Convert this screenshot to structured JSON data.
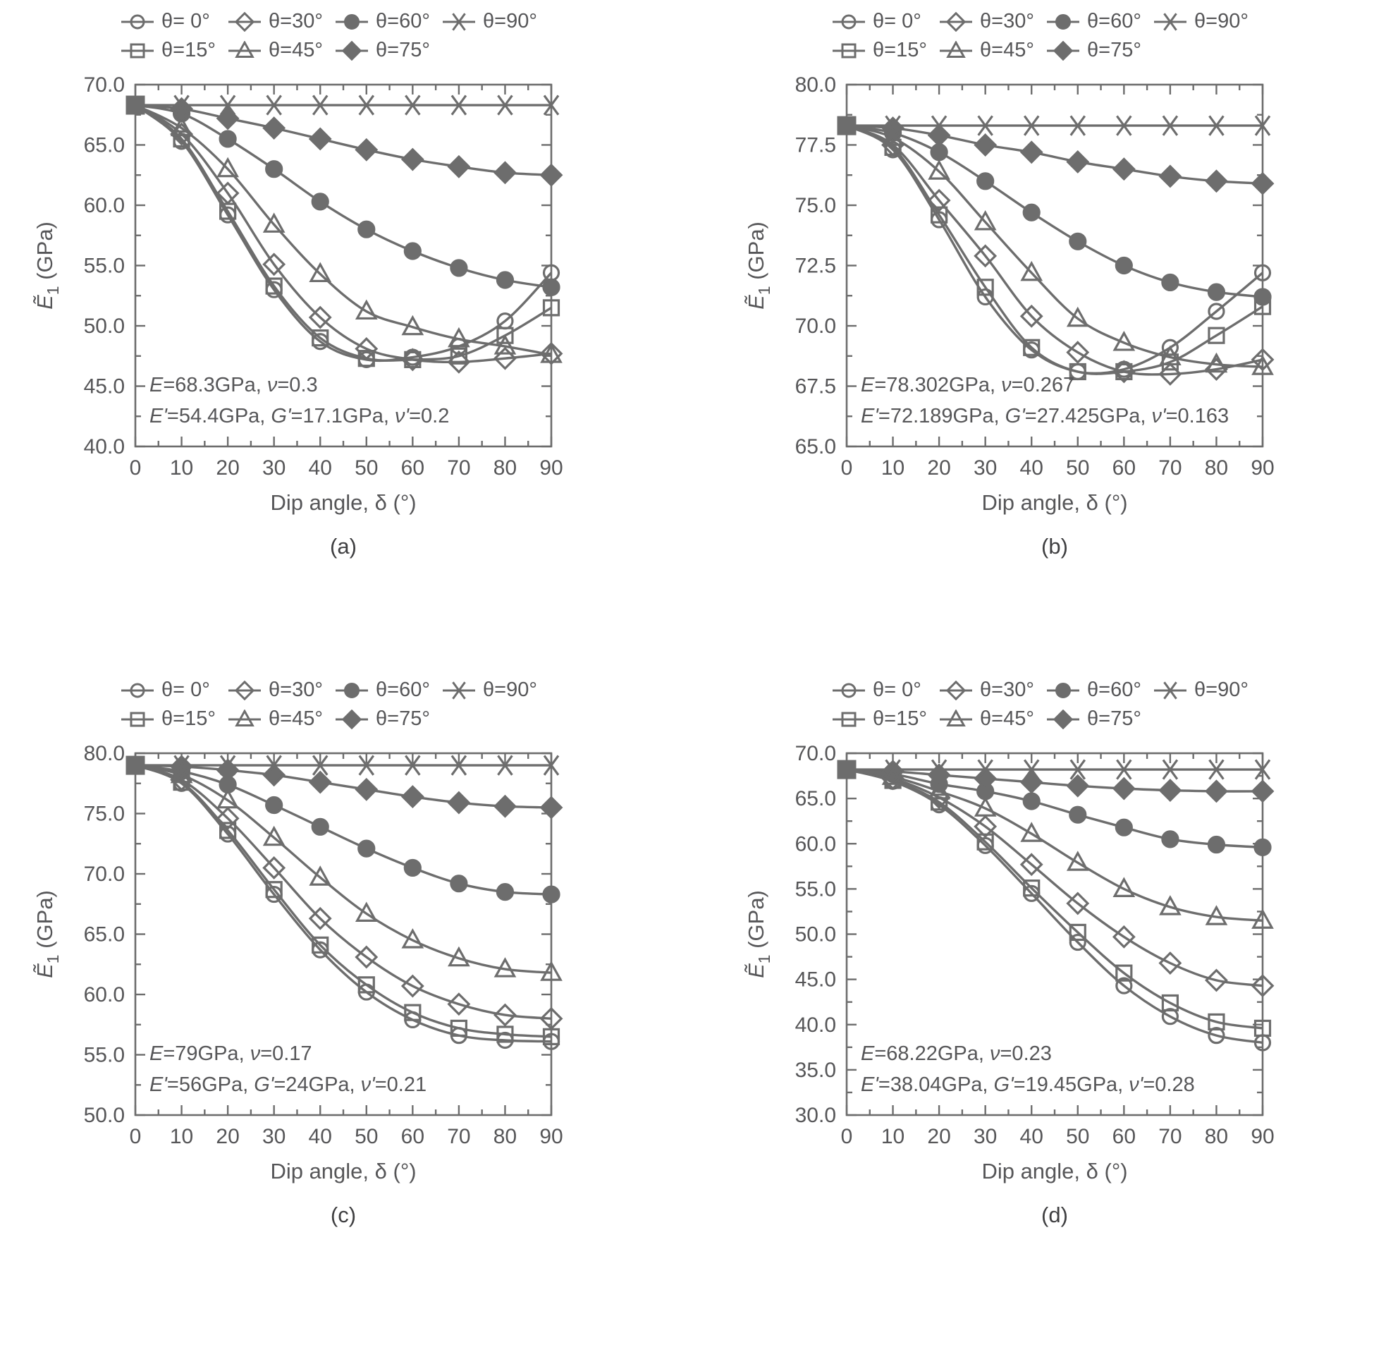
{
  "figure": {
    "x_title": "Dip angle, δ (°)",
    "y_title": {
      "symbol": "Ẽ",
      "subscript": "1",
      "unit": " (GPa)"
    },
    "colors": {
      "line": "#6d6d6d",
      "text": "#565658",
      "marker_fill": "#6d6d6d"
    },
    "legend": [
      {
        "theta": 0,
        "label": "θ= 0°",
        "marker": "circle-open"
      },
      {
        "theta": 15,
        "label": "θ=15°",
        "marker": "square-open"
      },
      {
        "theta": 30,
        "label": "θ=30°",
        "marker": "diamond-open"
      },
      {
        "theta": 45,
        "label": "θ=45°",
        "marker": "triangle-open"
      },
      {
        "theta": 60,
        "label": "θ=60°",
        "marker": "circle-filled"
      },
      {
        "theta": 75,
        "label": "θ=75°",
        "marker": "diamond-filled"
      },
      {
        "theta": 90,
        "label": "θ=90°",
        "marker": "asterisk"
      }
    ],
    "legend_rows": [
      [
        0,
        2,
        4,
        6
      ],
      [
        1,
        3,
        5
      ]
    ]
  },
  "chart_data": [
    {
      "type": "line",
      "panel": "(a)",
      "x": [
        0,
        10,
        20,
        30,
        40,
        50,
        60,
        70,
        80,
        90
      ],
      "xlabel": "Dip angle, δ (°)",
      "ylabel": "Ẽ1 (GPa)",
      "xlim": [
        0,
        90
      ],
      "x_major": 10,
      "x_minor": 5,
      "ylim": [
        40,
        70
      ],
      "y_major": 5,
      "y_minor": 2.5,
      "grid": false,
      "legend_position": "top",
      "annotation": [
        [
          {
            "t": "E",
            "i": true
          },
          {
            "t": "=68.3GPa, ",
            "i": false
          },
          {
            "t": "ν",
            "i": true
          },
          {
            "t": "=0.3",
            "i": false
          }
        ],
        [
          {
            "t": "E'",
            "i": true
          },
          {
            "t": "=54.4GPa, ",
            "i": false
          },
          {
            "t": "G'",
            "i": true
          },
          {
            "t": "=17.1GPa, ",
            "i": false
          },
          {
            "t": "ν'",
            "i": true
          },
          {
            "t": "=0.2",
            "i": false
          }
        ]
      ],
      "series": [
        {
          "name": "θ= 0°",
          "marker": "circle-open",
          "values": [
            68.3,
            65.3,
            59.2,
            53.0,
            48.7,
            47.2,
            47.4,
            48.3,
            50.4,
            54.4
          ]
        },
        {
          "name": "θ=15°",
          "marker": "square-open",
          "values": [
            68.3,
            65.5,
            59.5,
            53.3,
            49.0,
            47.3,
            47.2,
            47.5,
            49.2,
            51.5
          ]
        },
        {
          "name": "θ=30°",
          "marker": "diamond-open",
          "values": [
            68.3,
            65.9,
            61.0,
            55.1,
            50.7,
            48.1,
            47.2,
            47.0,
            47.3,
            47.7
          ]
        },
        {
          "name": "θ=45°",
          "marker": "triangle-open",
          "values": [
            68.3,
            66.4,
            63.0,
            58.4,
            54.3,
            51.2,
            49.9,
            48.9,
            48.3,
            47.6
          ]
        },
        {
          "name": "θ=60°",
          "marker": "circle-filled",
          "values": [
            68.3,
            67.6,
            65.5,
            63.0,
            60.3,
            58.0,
            56.2,
            54.8,
            53.8,
            53.2
          ]
        },
        {
          "name": "θ=75°",
          "marker": "diamond-filled",
          "values": [
            68.3,
            68.0,
            67.2,
            66.4,
            65.5,
            64.6,
            63.8,
            63.2,
            62.7,
            62.5
          ]
        },
        {
          "name": "θ=90°",
          "marker": "asterisk",
          "values": [
            68.3,
            68.3,
            68.3,
            68.3,
            68.3,
            68.3,
            68.3,
            68.3,
            68.3,
            68.3
          ]
        }
      ]
    },
    {
      "type": "line",
      "panel": "(b)",
      "x": [
        0,
        10,
        20,
        30,
        40,
        50,
        60,
        70,
        80,
        90
      ],
      "xlabel": "Dip angle, δ (°)",
      "ylabel": "Ẽ1 (GPa)",
      "xlim": [
        0,
        90
      ],
      "x_major": 10,
      "x_minor": 5,
      "ylim": [
        65,
        80
      ],
      "y_major": 2.5,
      "y_minor": 1.25,
      "grid": false,
      "legend_position": "top",
      "annotation": [
        [
          {
            "t": "E",
            "i": true
          },
          {
            "t": "=78.302GPa, ",
            "i": false
          },
          {
            "t": "ν",
            "i": true
          },
          {
            "t": "=0.267",
            "i": false
          }
        ],
        [
          {
            "t": "E'",
            "i": true
          },
          {
            "t": "=72.189GPa, ",
            "i": false
          },
          {
            "t": "G'",
            "i": true
          },
          {
            "t": "=27.425GPa, ",
            "i": false
          },
          {
            "t": "ν'",
            "i": true
          },
          {
            "t": "=0.163",
            "i": false
          }
        ]
      ],
      "series": [
        {
          "name": "θ= 0°",
          "marker": "circle-open",
          "values": [
            78.3,
            77.3,
            74.4,
            71.2,
            69.0,
            68.1,
            68.2,
            69.1,
            70.6,
            72.2
          ]
        },
        {
          "name": "θ=15°",
          "marker": "square-open",
          "values": [
            78.3,
            77.4,
            74.6,
            71.6,
            69.1,
            68.1,
            68.1,
            68.5,
            69.6,
            70.8
          ]
        },
        {
          "name": "θ=30°",
          "marker": "diamond-open",
          "values": [
            78.3,
            77.5,
            75.2,
            72.9,
            70.4,
            68.9,
            68.1,
            68.0,
            68.2,
            68.6
          ]
        },
        {
          "name": "θ=45°",
          "marker": "triangle-open",
          "values": [
            78.3,
            77.8,
            76.4,
            74.3,
            72.2,
            70.3,
            69.3,
            68.7,
            68.4,
            68.3
          ]
        },
        {
          "name": "θ=60°",
          "marker": "circle-filled",
          "values": [
            78.3,
            78.0,
            77.2,
            76.0,
            74.7,
            73.5,
            72.5,
            71.8,
            71.4,
            71.2
          ]
        },
        {
          "name": "θ=75°",
          "marker": "diamond-filled",
          "values": [
            78.3,
            78.2,
            77.9,
            77.5,
            77.2,
            76.8,
            76.5,
            76.2,
            76.0,
            75.9
          ]
        },
        {
          "name": "θ=90°",
          "marker": "asterisk",
          "values": [
            78.3,
            78.3,
            78.3,
            78.3,
            78.3,
            78.3,
            78.3,
            78.3,
            78.3,
            78.3
          ]
        }
      ]
    },
    {
      "type": "line",
      "panel": "(c)",
      "x": [
        0,
        10,
        20,
        30,
        40,
        50,
        60,
        70,
        80,
        90
      ],
      "xlabel": "Dip angle, δ (°)",
      "ylabel": "Ẽ1 (GPa)",
      "xlim": [
        0,
        90
      ],
      "x_major": 10,
      "x_minor": 5,
      "ylim": [
        50,
        80
      ],
      "y_major": 5,
      "y_minor": 2.5,
      "grid": false,
      "legend_position": "top",
      "annotation": [
        [
          {
            "t": "E",
            "i": true
          },
          {
            "t": "=79GPa, ",
            "i": false
          },
          {
            "t": "ν",
            "i": true
          },
          {
            "t": "=0.17",
            "i": false
          }
        ],
        [
          {
            "t": "E'",
            "i": true
          },
          {
            "t": "=56GPa, ",
            "i": false
          },
          {
            "t": "G'",
            "i": true
          },
          {
            "t": "=24GPa, ",
            "i": false
          },
          {
            "t": "ν'",
            "i": true
          },
          {
            "t": "=0.21",
            "i": false
          }
        ]
      ],
      "series": [
        {
          "name": "θ= 0°",
          "marker": "circle-open",
          "values": [
            79.0,
            77.5,
            73.3,
            68.3,
            63.7,
            60.2,
            57.9,
            56.6,
            56.2,
            56.1
          ]
        },
        {
          "name": "θ=15°",
          "marker": "square-open",
          "values": [
            79.0,
            77.6,
            73.6,
            68.7,
            64.1,
            60.8,
            58.5,
            57.2,
            56.7,
            56.5
          ]
        },
        {
          "name": "θ=30°",
          "marker": "diamond-open",
          "values": [
            79.0,
            77.8,
            74.6,
            70.5,
            66.3,
            63.1,
            60.7,
            59.2,
            58.3,
            58.0
          ]
        },
        {
          "name": "θ=45°",
          "marker": "triangle-open",
          "values": [
            79.0,
            78.2,
            76.1,
            73.0,
            69.7,
            66.7,
            64.5,
            63.0,
            62.1,
            61.8
          ]
        },
        {
          "name": "θ=60°",
          "marker": "circle-filled",
          "values": [
            79.0,
            78.5,
            77.4,
            75.7,
            73.9,
            72.1,
            70.5,
            69.2,
            68.5,
            68.3
          ]
        },
        {
          "name": "θ=75°",
          "marker": "diamond-filled",
          "values": [
            79.0,
            78.9,
            78.6,
            78.2,
            77.6,
            77.0,
            76.4,
            75.9,
            75.6,
            75.5
          ]
        },
        {
          "name": "θ=90°",
          "marker": "asterisk",
          "values": [
            79.0,
            79.0,
            79.0,
            79.0,
            79.0,
            79.0,
            79.0,
            79.0,
            79.0,
            79.0
          ]
        }
      ]
    },
    {
      "type": "line",
      "panel": "(d)",
      "x": [
        0,
        10,
        20,
        30,
        40,
        50,
        60,
        70,
        80,
        90
      ],
      "xlabel": "Dip angle, δ (°)",
      "ylabel": "Ẽ1 (GPa)",
      "xlim": [
        0,
        90
      ],
      "x_major": 10,
      "x_minor": 5,
      "ylim": [
        30,
        70
      ],
      "y_major": 5,
      "y_minor": 2.5,
      "grid": false,
      "legend_position": "top",
      "annotation": [
        [
          {
            "t": "E",
            "i": true
          },
          {
            "t": "=68.22GPa, ",
            "i": false
          },
          {
            "t": "ν",
            "i": true
          },
          {
            "t": "=0.23",
            "i": false
          }
        ],
        [
          {
            "t": "E'",
            "i": true
          },
          {
            "t": "=38.04GPa, ",
            "i": false
          },
          {
            "t": "G'",
            "i": true
          },
          {
            "t": "=19.45GPa, ",
            "i": false
          },
          {
            "t": "ν'",
            "i": true
          },
          {
            "t": "=0.28",
            "i": false
          }
        ]
      ],
      "series": [
        {
          "name": "θ= 0°",
          "marker": "circle-open",
          "values": [
            68.2,
            66.9,
            64.3,
            59.8,
            54.5,
            49.1,
            44.3,
            40.9,
            38.8,
            38.0
          ]
        },
        {
          "name": "θ=15°",
          "marker": "square-open",
          "values": [
            68.2,
            67.0,
            64.6,
            60.2,
            55.1,
            50.2,
            45.7,
            42.4,
            40.3,
            39.6
          ]
        },
        {
          "name": "θ=30°",
          "marker": "diamond-open",
          "values": [
            68.2,
            67.2,
            65.1,
            61.9,
            57.7,
            53.4,
            49.7,
            46.8,
            44.9,
            44.3
          ]
        },
        {
          "name": "θ=45°",
          "marker": "triangle-open",
          "values": [
            68.2,
            67.4,
            65.8,
            63.9,
            61.1,
            57.9,
            55.0,
            53.0,
            51.9,
            51.5
          ]
        },
        {
          "name": "θ=60°",
          "marker": "circle-filled",
          "values": [
            68.2,
            67.7,
            66.6,
            65.8,
            64.7,
            63.2,
            61.8,
            60.5,
            59.9,
            59.6
          ]
        },
        {
          "name": "θ=75°",
          "marker": "diamond-filled",
          "values": [
            68.2,
            68.0,
            67.6,
            67.2,
            66.8,
            66.4,
            66.1,
            65.9,
            65.8,
            65.8
          ]
        },
        {
          "name": "θ=90°",
          "marker": "asterisk",
          "values": [
            68.2,
            68.2,
            68.2,
            68.2,
            68.2,
            68.2,
            68.2,
            68.2,
            68.2,
            68.2
          ]
        }
      ]
    }
  ]
}
